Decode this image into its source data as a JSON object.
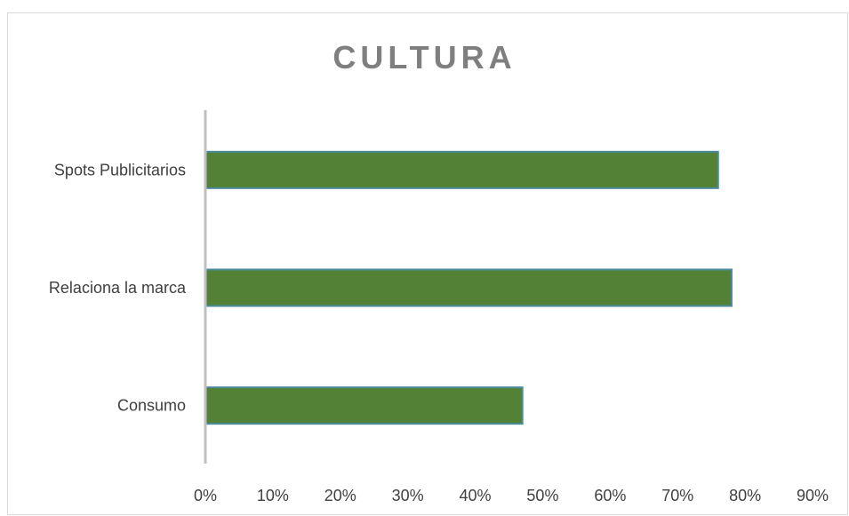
{
  "chart_data": {
    "type": "bar",
    "orientation": "horizontal",
    "title": "CULTURA",
    "categories": [
      "Spots Publicitarios",
      "Relaciona la marca",
      "Consumo"
    ],
    "values": [
      0.76,
      0.78,
      0.47
    ],
    "xlim": [
      0,
      0.9
    ],
    "xticks": [
      "0%",
      "10%",
      "20%",
      "30%",
      "40%",
      "50%",
      "60%",
      "70%",
      "80%",
      "90%"
    ],
    "xlabel": "",
    "ylabel": "",
    "grid": false,
    "legend": "none",
    "bar_color": "#538135",
    "bar_edge_color": "#4a8a9c",
    "axis_color": "#bfbfbf",
    "title_color": "#7f7f7f",
    "label_color": "#404040"
  }
}
